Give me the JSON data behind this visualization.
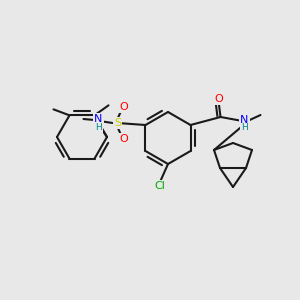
{
  "bg_color": "#e8e8e8",
  "line_color": "#1a1a1a",
  "bond_lw": 1.5,
  "ring_lw": 1.5,
  "atom_colors": {
    "O": "#ff0000",
    "N": "#0000ff",
    "S": "#cccc00",
    "Cl": "#00aa00",
    "H": "#008888"
  }
}
